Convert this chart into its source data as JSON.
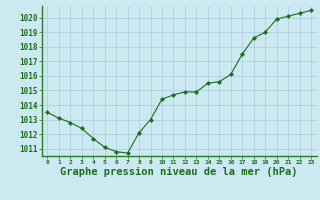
{
  "x": [
    0,
    1,
    2,
    3,
    4,
    5,
    6,
    7,
    8,
    9,
    10,
    11,
    12,
    13,
    14,
    15,
    16,
    17,
    18,
    19,
    20,
    21,
    22,
    23
  ],
  "y": [
    1013.5,
    1013.1,
    1012.8,
    1012.4,
    1011.7,
    1011.1,
    1010.8,
    1010.7,
    1012.1,
    1013.0,
    1014.4,
    1014.7,
    1014.9,
    1014.9,
    1015.5,
    1015.6,
    1016.1,
    1017.5,
    1018.6,
    1019.0,
    1019.9,
    1020.1,
    1020.3,
    1020.5
  ],
  "line_color": "#1a6e1a",
  "marker": "D",
  "marker_size": 2.2,
  "bg_color": "#cce8f0",
  "grid_color": "#aaccdd",
  "xlabel": "Graphe pression niveau de la mer (hPa)",
  "xlabel_color": "#1a6e1a",
  "xlabel_fontsize": 7.5,
  "tick_color": "#1a6e1a",
  "ylim": [
    1010.5,
    1020.8
  ],
  "yticks": [
    1011,
    1012,
    1013,
    1014,
    1015,
    1016,
    1017,
    1018,
    1019,
    1020
  ],
  "xlim": [
    -0.5,
    23.5
  ],
  "xticks": [
    0,
    1,
    2,
    3,
    4,
    5,
    6,
    7,
    8,
    9,
    10,
    11,
    12,
    13,
    14,
    15,
    16,
    17,
    18,
    19,
    20,
    21,
    22,
    23
  ],
  "axis_color": "#2a7a2a",
  "spine_linewidth": 1.0
}
